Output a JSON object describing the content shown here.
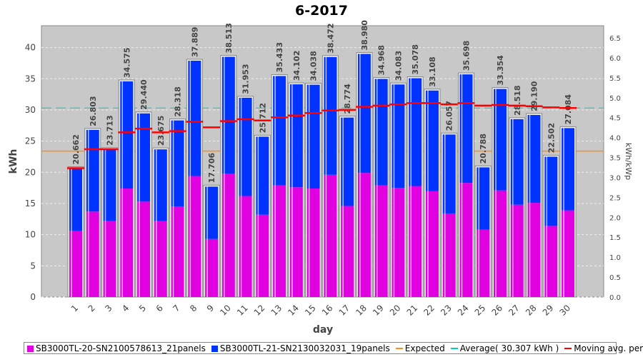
{
  "chart_data": {
    "type": "bar",
    "title": "6-2017",
    "xlabel": "day",
    "ylabel": "kWh",
    "y2label": "kWh/kWp",
    "ylim": [
      0,
      43.5
    ],
    "y2lim": [
      0,
      6.5
    ],
    "yticks": [
      0,
      5,
      10,
      15,
      20,
      25,
      30,
      35,
      40
    ],
    "y2ticks": [
      "0.0",
      "0.5",
      "1.0",
      "1.5",
      "2.0",
      "2.5",
      "3.0",
      "3.5",
      "4.0",
      "4.5",
      "5.0",
      "5.5",
      "6.0",
      "6.5"
    ],
    "grid": true,
    "legend_placement": "bottom",
    "categories": [
      "1",
      "2",
      "3",
      "4",
      "5",
      "6",
      "7",
      "8",
      "9",
      "10",
      "11",
      "12",
      "13",
      "14",
      "15",
      "16",
      "17",
      "18",
      "19",
      "20",
      "21",
      "22",
      "23",
      "24",
      "25",
      "26",
      "27",
      "28",
      "29",
      "30"
    ],
    "totals_labels": [
      "20.662",
      "26.803",
      "23.713",
      "34.575",
      "29.440",
      "23.675",
      "28.318",
      "37.889",
      "17.706",
      "38.513",
      "31.953",
      "25.712",
      "35.433",
      "34.102",
      "34.038",
      "38.472",
      "28.774",
      "38.980",
      "34.968",
      "34.083",
      "35.078",
      "33.108",
      "26.057",
      "35.698",
      "20.788",
      "33.354",
      "28.518",
      "29.190",
      "22.502",
      "27.084"
    ],
    "series": [
      {
        "name": "SB3000TL-20-SN2100578613_21panels",
        "color": "#e000e0",
        "values": [
          10.6,
          13.7,
          12.2,
          17.4,
          15.3,
          12.2,
          14.5,
          19.4,
          9.3,
          19.8,
          16.2,
          13.2,
          17.9,
          17.6,
          17.4,
          19.6,
          14.6,
          19.9,
          17.9,
          17.5,
          17.8,
          17.0,
          13.4,
          18.3,
          10.8,
          17.1,
          14.8,
          15.1,
          11.4,
          13.9
        ]
      },
      {
        "name": "SB3000TL-21-SN2130032031_19panels",
        "color": "#0033ff",
        "values": [
          10.062,
          13.103,
          11.513,
          17.175,
          14.14,
          11.475,
          13.818,
          18.489,
          8.406,
          18.713,
          15.753,
          12.512,
          17.533,
          16.502,
          16.638,
          18.872,
          14.174,
          19.08,
          17.068,
          16.583,
          17.278,
          16.108,
          12.657,
          17.398,
          9.988,
          16.254,
          13.718,
          14.09,
          11.102,
          13.184
        ]
      }
    ],
    "expected": {
      "name": "Expected",
      "color": "#ff8c1a",
      "value": 23.4
    },
    "average": {
      "name": "Average( 30.307 kWh )",
      "color": "#00cccc",
      "value": 30.307
    },
    "moving_avg": {
      "name": "Moving avg. per day.",
      "color": "#ff0000",
      "values": [
        20.66,
        23.7,
        23.7,
        26.4,
        27.0,
        26.4,
        26.6,
        28.1,
        27.2,
        28.2,
        28.5,
        28.3,
        28.8,
        29.1,
        29.5,
        29.9,
        30.0,
        30.5,
        30.7,
        30.9,
        31.1,
        31.1,
        30.9,
        31.1,
        30.7,
        30.8,
        30.7,
        30.6,
        30.4,
        30.3
      ]
    }
  }
}
